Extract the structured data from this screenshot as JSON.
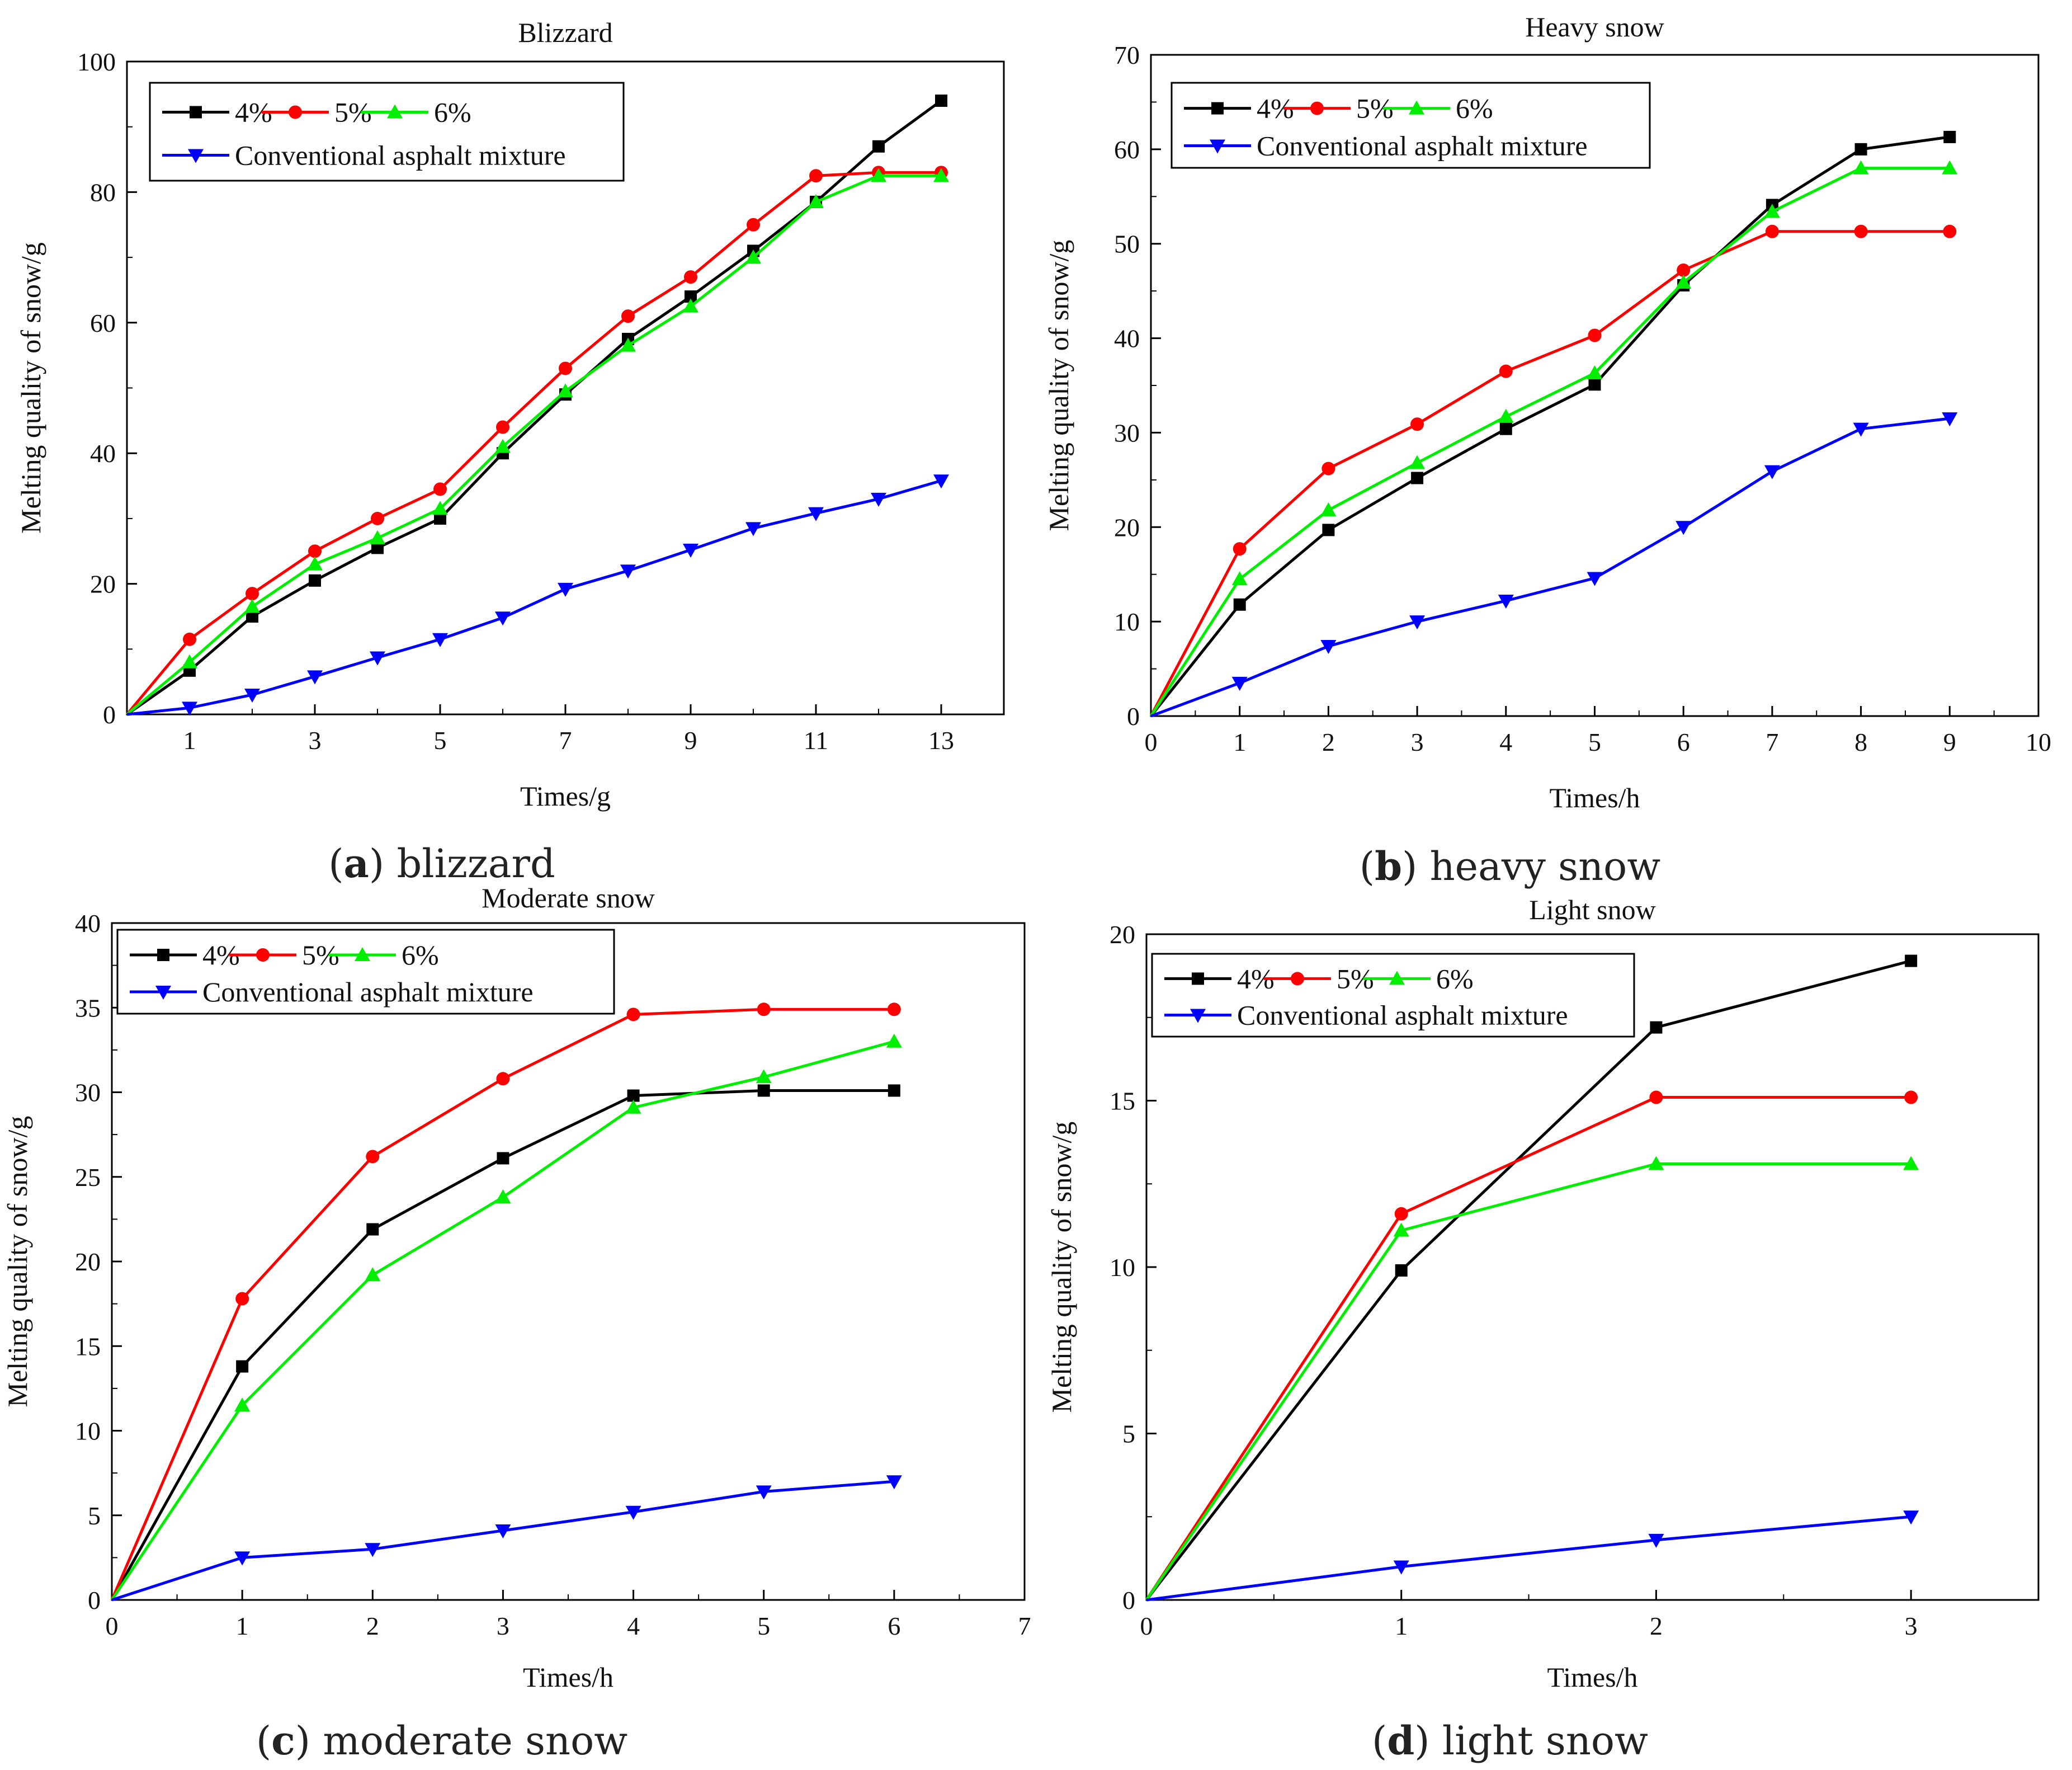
{
  "chart_data": [
    {
      "id": "blizzard",
      "type": "line",
      "title": "Blizzard",
      "xlabel": "Times/g",
      "ylabel": "Melting quality of snow/g",
      "xlim": [
        0,
        14
      ],
      "ylim": [
        0,
        100
      ],
      "xticks": [
        1,
        3,
        5,
        7,
        9,
        11,
        13
      ],
      "yticks": [
        0,
        20,
        40,
        60,
        80,
        100
      ],
      "caption": {
        "letter": "a",
        "text": "blizzard"
      },
      "series": [
        {
          "name": "4%",
          "color": "#000000",
          "marker": "square",
          "x": [
            0,
            1,
            2,
            3,
            4,
            5,
            6,
            7,
            8,
            9,
            10,
            11,
            12,
            13
          ],
          "y": [
            0,
            6.7,
            15,
            20.5,
            25.5,
            30,
            40,
            49,
            57.5,
            64,
            71,
            78.5,
            87,
            94
          ]
        },
        {
          "name": "5%",
          "color": "#ff0000",
          "marker": "circle",
          "x": [
            0,
            1,
            2,
            3,
            4,
            5,
            6,
            7,
            8,
            9,
            10,
            11,
            12,
            13
          ],
          "y": [
            0,
            11.5,
            18.5,
            25,
            30,
            34.5,
            44,
            53,
            61,
            67,
            75,
            82.5,
            83,
            83
          ]
        },
        {
          "name": "6%",
          "color": "#00ee00",
          "marker": "triangle-up",
          "x": [
            0,
            1,
            2,
            3,
            4,
            5,
            6,
            7,
            8,
            9,
            10,
            11,
            12,
            13
          ],
          "y": [
            0,
            8,
            16.5,
            23,
            27,
            31.5,
            41,
            49.5,
            56.5,
            62.5,
            70,
            78.5,
            82.5,
            82.5
          ]
        },
        {
          "name": "Conventional asphalt mixture",
          "color": "#0000ff",
          "marker": "triangle-down",
          "x": [
            0,
            1,
            2,
            3,
            4,
            5,
            6,
            7,
            8,
            9,
            10,
            11,
            12,
            13
          ],
          "y": [
            0,
            1,
            3,
            5.8,
            8.7,
            11.5,
            14.8,
            19.2,
            22,
            25.2,
            28.5,
            30.8,
            33,
            35.8
          ]
        }
      ]
    },
    {
      "id": "heavy",
      "type": "line",
      "title": "Heavy snow",
      "xlabel": "Times/h",
      "ylabel": "Melting quality of snow/g",
      "xlim": [
        0,
        10
      ],
      "ylim": [
        0,
        70
      ],
      "xticks": [
        0,
        1,
        2,
        3,
        4,
        5,
        6,
        7,
        8,
        9,
        10
      ],
      "yticks": [
        0,
        10,
        20,
        30,
        40,
        50,
        60,
        70
      ],
      "caption": {
        "letter": "b",
        "text": "heavy snow"
      },
      "series": [
        {
          "name": "4%",
          "color": "#000000",
          "marker": "square",
          "x": [
            0,
            1,
            2,
            3,
            4,
            5,
            6,
            7,
            8,
            9
          ],
          "y": [
            0,
            11.8,
            19.7,
            25.2,
            30.4,
            35.1,
            45.6,
            54.1,
            60,
            61.3
          ]
        },
        {
          "name": "5%",
          "color": "#ff0000",
          "marker": "circle",
          "x": [
            0,
            1,
            2,
            3,
            4,
            5,
            6,
            7,
            8,
            9
          ],
          "y": [
            0,
            17.7,
            26.2,
            30.9,
            36.5,
            40.3,
            47.2,
            51.3,
            51.3,
            51.3
          ]
        },
        {
          "name": "6%",
          "color": "#00ee00",
          "marker": "triangle-up",
          "x": [
            0,
            1,
            2,
            3,
            4,
            5,
            6,
            7,
            8,
            9
          ],
          "y": [
            0,
            14.5,
            21.8,
            26.8,
            31.7,
            36.3,
            45.9,
            53.4,
            58,
            58
          ]
        },
        {
          "name": "Conventional asphalt mixture",
          "color": "#0000ff",
          "marker": "triangle-down",
          "x": [
            0,
            1,
            2,
            3,
            4,
            5,
            6,
            7,
            8,
            9
          ],
          "y": [
            0,
            3.5,
            7.4,
            10,
            12.2,
            14.6,
            20,
            25.9,
            30.4,
            31.5
          ]
        }
      ]
    },
    {
      "id": "moderate",
      "type": "line",
      "title": "Moderate snow",
      "xlabel": "Times/h",
      "ylabel": "Melting quality of snow/g",
      "xlim": [
        0,
        7
      ],
      "ylim": [
        0,
        40
      ],
      "xticks": [
        0,
        1,
        2,
        3,
        4,
        5,
        6,
        7
      ],
      "yticks": [
        0,
        5,
        10,
        15,
        20,
        25,
        30,
        35,
        40
      ],
      "caption": {
        "letter": "c",
        "text": "moderate snow"
      },
      "series": [
        {
          "name": "4%",
          "color": "#000000",
          "marker": "square",
          "x": [
            0,
            1,
            2,
            3,
            4,
            5,
            6
          ],
          "y": [
            0,
            13.8,
            21.9,
            26.1,
            29.8,
            30.1,
            30.1
          ]
        },
        {
          "name": "5%",
          "color": "#ff0000",
          "marker": "circle",
          "x": [
            0,
            1,
            2,
            3,
            4,
            5,
            6
          ],
          "y": [
            0,
            17.8,
            26.2,
            30.8,
            34.6,
            34.9,
            34.9
          ]
        },
        {
          "name": "6%",
          "color": "#00ee00",
          "marker": "triangle-up",
          "x": [
            0,
            1,
            2,
            3,
            4,
            5,
            6
          ],
          "y": [
            0,
            11.5,
            19.2,
            23.8,
            29.1,
            30.9,
            33
          ]
        },
        {
          "name": "Conventional asphalt mixture",
          "color": "#0000ff",
          "marker": "triangle-down",
          "x": [
            0,
            1,
            2,
            3,
            4,
            5,
            6
          ],
          "y": [
            0,
            2.5,
            3,
            4.1,
            5.2,
            6.4,
            7
          ]
        }
      ]
    },
    {
      "id": "light",
      "type": "line",
      "title": "Light snow",
      "xlabel": "Times/h",
      "ylabel": "Melting quality of snow/g",
      "xlim": [
        0,
        3.5
      ],
      "ylim": [
        0,
        20
      ],
      "xticks": [
        0,
        1,
        2,
        3
      ],
      "yticks": [
        0,
        5,
        10,
        15,
        20
      ],
      "caption": {
        "letter": "d",
        "text": "light snow"
      },
      "series": [
        {
          "name": "4%",
          "color": "#000000",
          "marker": "square",
          "x": [
            0,
            1,
            2,
            3
          ],
          "y": [
            0,
            9.9,
            17.2,
            19.2
          ]
        },
        {
          "name": "5%",
          "color": "#ff0000",
          "marker": "circle",
          "x": [
            0,
            1,
            2,
            3
          ],
          "y": [
            0,
            11.6,
            15.1,
            15.1
          ]
        },
        {
          "name": "6%",
          "color": "#00ee00",
          "marker": "triangle-up",
          "x": [
            0,
            1,
            2,
            3
          ],
          "y": [
            0,
            11.1,
            13.1,
            13.1
          ]
        },
        {
          "name": "Conventional asphalt mixture",
          "color": "#0000ff",
          "marker": "triangle-down",
          "x": [
            0,
            1,
            2,
            3
          ],
          "y": [
            0,
            1,
            1.8,
            2.5
          ]
        }
      ]
    }
  ]
}
